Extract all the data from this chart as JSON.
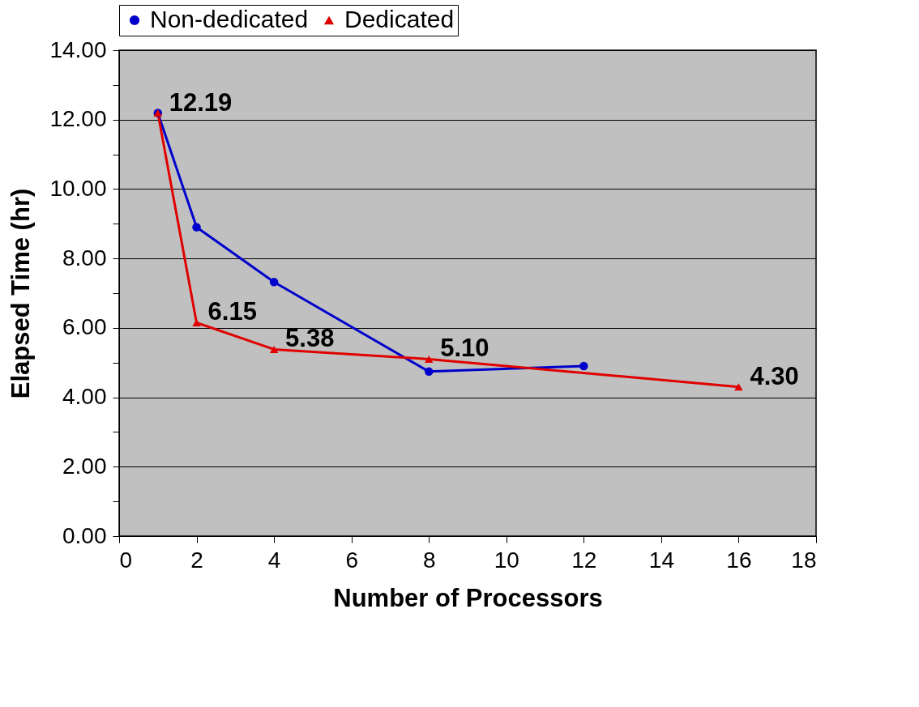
{
  "chart_data": {
    "type": "line",
    "xlabel": "Number of Processors",
    "ylabel": "Elapsed Time (hr)",
    "xlim": [
      0,
      18
    ],
    "xticks": [
      0,
      2,
      4,
      6,
      8,
      10,
      12,
      14,
      16,
      18
    ],
    "ylim": [
      0,
      14
    ],
    "yticks": [
      {
        "value": 0,
        "label": "0.00"
      },
      {
        "value": 1,
        "label": null
      },
      {
        "value": 2,
        "label": "2.00"
      },
      {
        "value": 3,
        "label": null
      },
      {
        "value": 4,
        "label": "4.00"
      },
      {
        "value": 5,
        "label": null
      },
      {
        "value": 6,
        "label": "6.00"
      },
      {
        "value": 7,
        "label": null
      },
      {
        "value": 8,
        "label": "8.00"
      },
      {
        "value": 9,
        "label": null
      },
      {
        "value": 10,
        "label": "10.00"
      },
      {
        "value": 11,
        "label": null
      },
      {
        "value": 12,
        "label": "12.00"
      },
      {
        "value": 13,
        "label": null
      },
      {
        "value": 14,
        "label": "14.00"
      }
    ],
    "grid": "y",
    "legend": "top",
    "line_style": "solid",
    "series": [
      {
        "name": "Non-dedicated",
        "color": "#0000cc",
        "marker": "circle",
        "x": [
          1,
          2,
          4,
          8,
          12
        ],
        "values": [
          12.19,
          8.9,
          7.32,
          4.74,
          4.9
        ]
      },
      {
        "name": "Dedicated",
        "color": "#e00000",
        "marker": "triangle",
        "x": [
          1,
          2,
          4,
          8,
          16
        ],
        "values": [
          12.19,
          6.15,
          5.38,
          5.1,
          4.3
        ],
        "value_labels": [
          "12.19",
          "6.15",
          "5.38",
          "5.10",
          "4.30"
        ]
      }
    ]
  }
}
